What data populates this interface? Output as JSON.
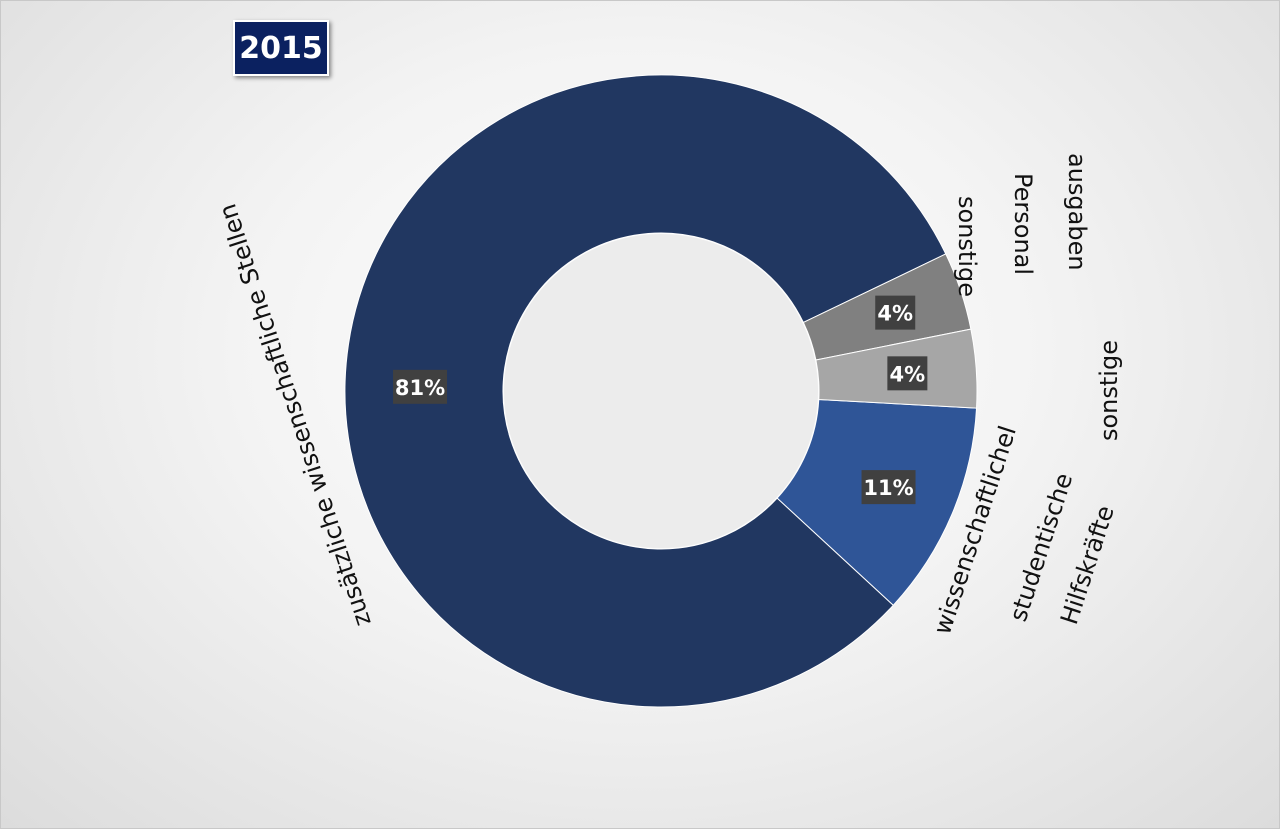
{
  "chart_data": {
    "type": "pie",
    "title": "2015",
    "slices": [
      {
        "label": "zusätzliche wissenschaftliche Stellen",
        "value": 81,
        "display": "81%",
        "color": "#213761"
      },
      {
        "label": "sonstige Personal ausgaben",
        "value": 4,
        "display": "4%",
        "color": "#808080"
      },
      {
        "label": "sonstige",
        "value": 4,
        "display": "4%",
        "color": "#a6a6a6"
      },
      {
        "label": "wissenschaftlichel studentische Hilfskräfte",
        "value": 11,
        "display": "11%",
        "color": "#2f5597"
      }
    ],
    "donut": true
  }
}
